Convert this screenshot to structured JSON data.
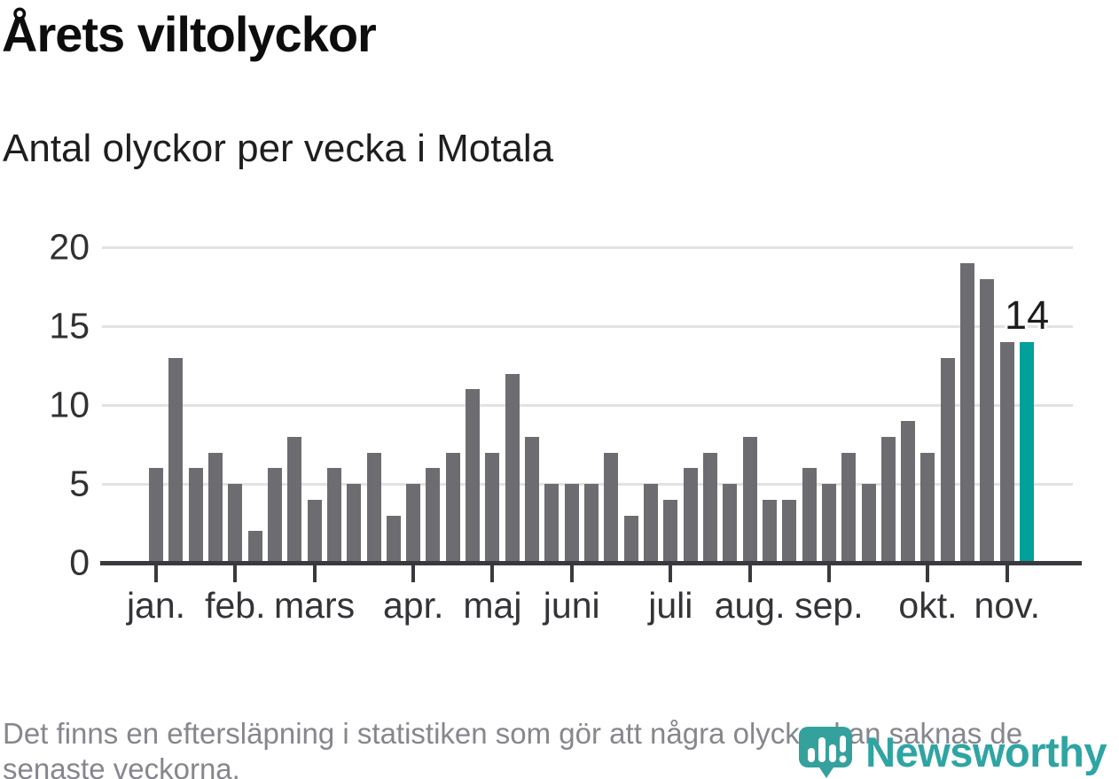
{
  "header": {
    "title": "Årets viltolyckor",
    "subtitle": "Antal olyckor per vecka i Motala"
  },
  "chart_data": {
    "type": "bar",
    "title": "Årets viltolyckor",
    "subtitle": "Antal olyckor per vecka i Motala",
    "x_unit": "vecka (week 1–45)",
    "values": [
      6,
      13,
      6,
      7,
      5,
      2,
      6,
      8,
      4,
      6,
      5,
      7,
      3,
      5,
      6,
      7,
      11,
      7,
      12,
      8,
      5,
      5,
      5,
      7,
      3,
      5,
      4,
      6,
      7,
      5,
      8,
      4,
      4,
      6,
      5,
      7,
      5,
      8,
      9,
      7,
      13,
      19,
      18,
      14,
      14
    ],
    "highlight_index": 44,
    "annotation_label": "14",
    "month_ticks": [
      {
        "label": "jan.",
        "week_index": 0
      },
      {
        "label": "feb.",
        "week_index": 4
      },
      {
        "label": "mars",
        "week_index": 8
      },
      {
        "label": "apr.",
        "week_index": 13
      },
      {
        "label": "maj",
        "week_index": 17
      },
      {
        "label": "juni",
        "week_index": 21
      },
      {
        "label": "juli",
        "week_index": 26
      },
      {
        "label": "aug.",
        "week_index": 30
      },
      {
        "label": "sep.",
        "week_index": 34
      },
      {
        "label": "okt.",
        "week_index": 39
      },
      {
        "label": "nov.",
        "week_index": 43
      }
    ],
    "yticks": [
      0,
      5,
      10,
      15,
      20
    ],
    "ylim": [
      0,
      20
    ],
    "grid": true,
    "legend": false
  },
  "colors": {
    "bar": "#6d6d71",
    "highlight": "#00a19a",
    "grid": "#e2e2e2",
    "axis": "#3a3a3e",
    "logo": "#2ea5a3"
  },
  "footer": {
    "note": "Det finns en eftersläpning i statistiken som gör att några olyckor kan saknas de\nsenaste veckorna.",
    "brand": "Newsworthy"
  }
}
